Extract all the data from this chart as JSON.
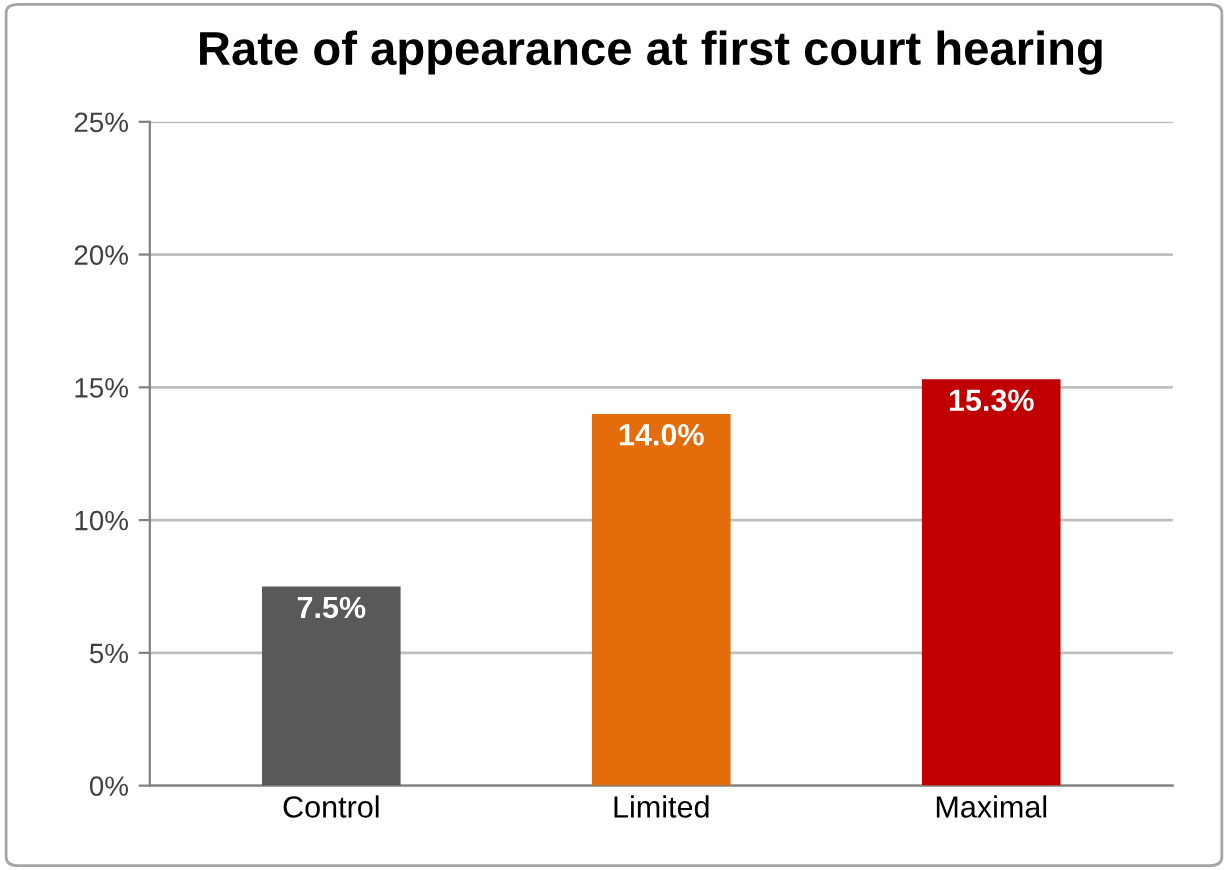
{
  "chart_data": {
    "type": "bar",
    "title": "Rate of appearance at first court hearing",
    "categories": [
      "Control",
      "Limited",
      "Maximal"
    ],
    "values": [
      7.5,
      14.0,
      15.3
    ],
    "colors": [
      "#595959",
      "#e46c0a",
      "#c00000"
    ],
    "value_labels": [
      "7.5%",
      "14.0%",
      "15.3%"
    ],
    "ylim": [
      0,
      25
    ],
    "yticks": [
      {
        "value": 0,
        "label": "0%"
      },
      {
        "value": 5,
        "label": "5%"
      },
      {
        "value": 10,
        "label": "10%"
      },
      {
        "value": 15,
        "label": "15%"
      },
      {
        "value": 20,
        "label": "20%"
      },
      {
        "value": 25,
        "label": "25%"
      }
    ],
    "grid": "y"
  }
}
